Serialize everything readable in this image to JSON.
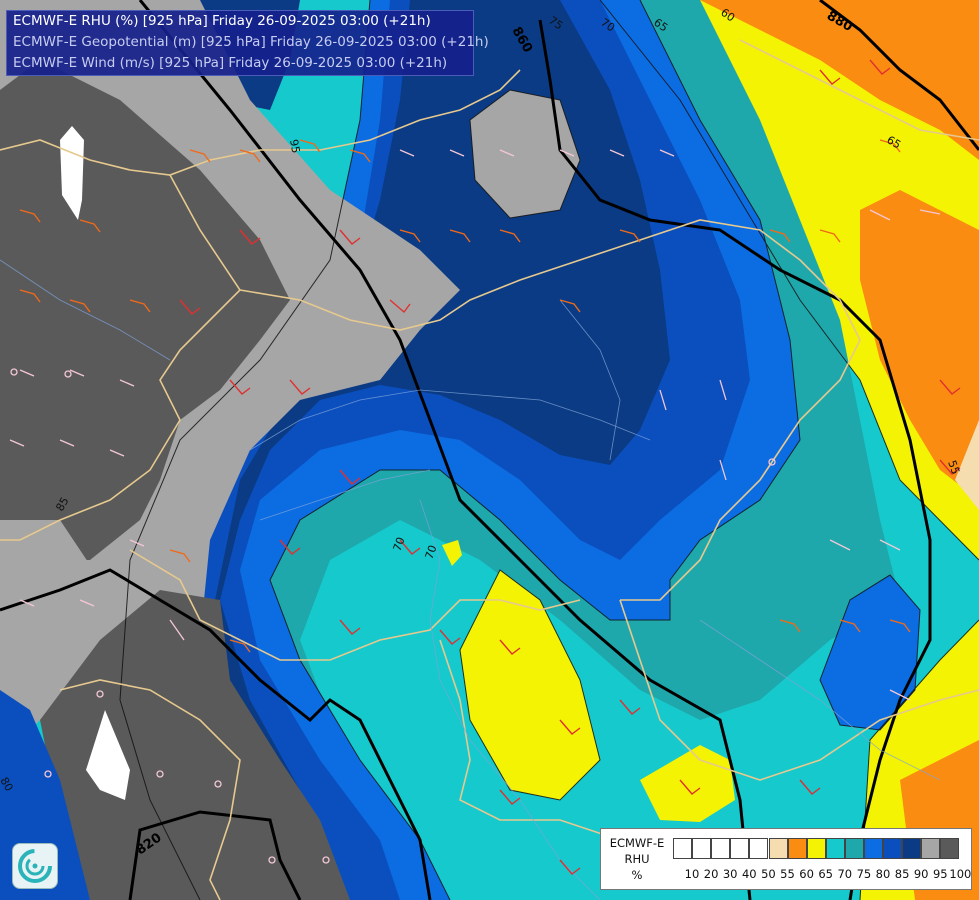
{
  "title": {
    "line1": "ECMWF-E RHU (%) [925 hPa] Friday 26-09-2025 03:00 (+21h)",
    "line2": "ECMWF-E Geopotential (m) [925 hPa] Friday 26-09-2025 03:00 (+21h)",
    "line3": "ECMWF-E Wind (m/s) [925 hPa] Friday 26-09-2025 03:00 (+21h)"
  },
  "legend": {
    "model": "ECMWF-E",
    "variable": "RHU",
    "unit": "%",
    "swatches": [
      "#ffffff",
      "#ffffff",
      "#ffffff",
      "#ffffff",
      "#ffffff",
      "#f6ddb0",
      "#fb8c12",
      "#f3f303",
      "#16c9cc",
      "#1ea8ab",
      "#0c6de3",
      "#0b4fbe",
      "#0b3b84",
      "#a6a6a6",
      "#5a5a5a"
    ],
    "ticks": [
      "10",
      "20",
      "30",
      "40",
      "50",
      "55",
      "60",
      "65",
      "70",
      "75",
      "80",
      "85",
      "90",
      "95",
      "100"
    ]
  },
  "contours": {
    "geopotential": [
      "860",
      "880",
      "820"
    ],
    "rhu": [
      "75",
      "70",
      "65",
      "60",
      "95",
      "55",
      "65",
      "70",
      "80",
      "85",
      "70"
    ]
  },
  "icons": {
    "logo": "ecmwf-swirl-logo-icon"
  }
}
